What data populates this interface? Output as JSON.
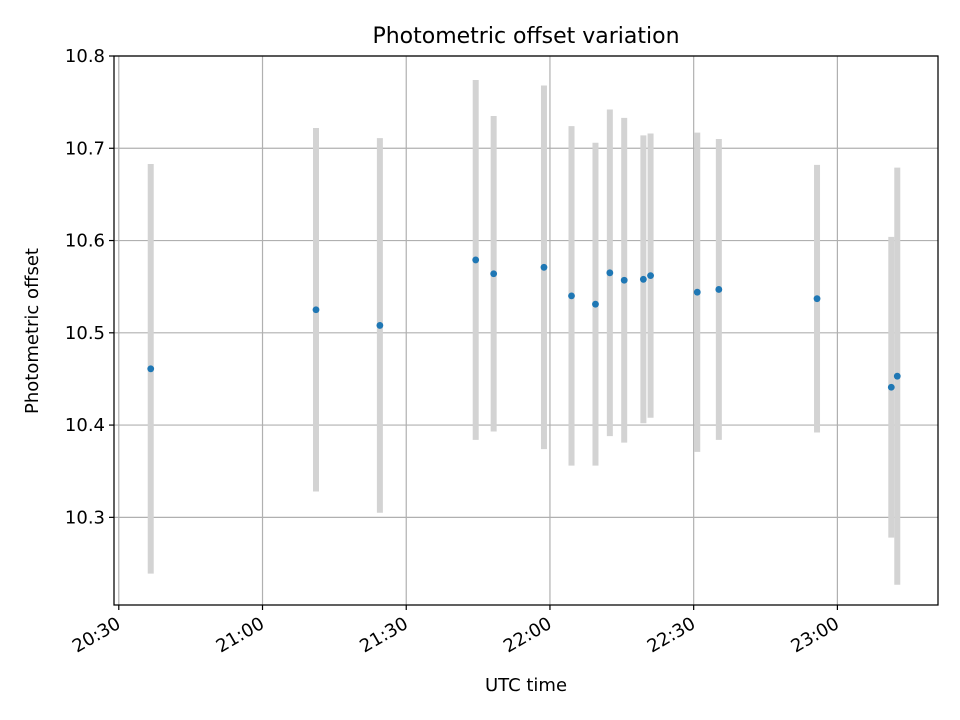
{
  "chart_data": {
    "type": "scatter",
    "title": "Photometric offset variation",
    "xlabel": "UTC time",
    "ylabel": "Photometric offset",
    "x_ticks": [
      "20:30",
      "21:00",
      "21:30",
      "22:00",
      "22:30",
      "23:00"
    ],
    "y_ticks": [
      "10.3",
      "10.4",
      "10.5",
      "10.6",
      "10.7",
      "10.8"
    ],
    "ylim": [
      10.205,
      10.8
    ],
    "xlim": [
      "20:29",
      "23:21"
    ],
    "grid": true,
    "colors": {
      "points": "#1f77b4",
      "error_bars": "#d3d3d3",
      "grid": "#b0b0b0"
    },
    "series": [
      {
        "points": [
          {
            "x": "20:36:40",
            "y": 10.461,
            "err": 0.222
          },
          {
            "x": "21:11:10",
            "y": 10.525,
            "err": 0.197
          },
          {
            "x": "21:24:30",
            "y": 10.508,
            "err": 0.203
          },
          {
            "x": "21:44:30",
            "y": 10.579,
            "err": 0.195
          },
          {
            "x": "21:48:15",
            "y": 10.564,
            "err": 0.171
          },
          {
            "x": "21:58:45",
            "y": 10.571,
            "err": 0.197
          },
          {
            "x": "22:04:30",
            "y": 10.54,
            "err": 0.184
          },
          {
            "x": "22:09:30",
            "y": 10.531,
            "err": 0.175
          },
          {
            "x": "22:12:30",
            "y": 10.565,
            "err": 0.177
          },
          {
            "x": "22:15:30",
            "y": 10.557,
            "err": 0.176
          },
          {
            "x": "22:19:30",
            "y": 10.558,
            "err": 0.156
          },
          {
            "x": "22:21:00",
            "y": 10.562,
            "err": 0.154
          },
          {
            "x": "22:30:45",
            "y": 10.544,
            "err": 0.173
          },
          {
            "x": "22:35:15",
            "y": 10.547,
            "err": 0.163
          },
          {
            "x": "22:55:45",
            "y": 10.537,
            "err": 0.145
          },
          {
            "x": "23:11:15",
            "y": 10.441,
            "err": 0.163
          },
          {
            "x": "23:12:30",
            "y": 10.453,
            "err": 0.226
          }
        ]
      }
    ]
  }
}
